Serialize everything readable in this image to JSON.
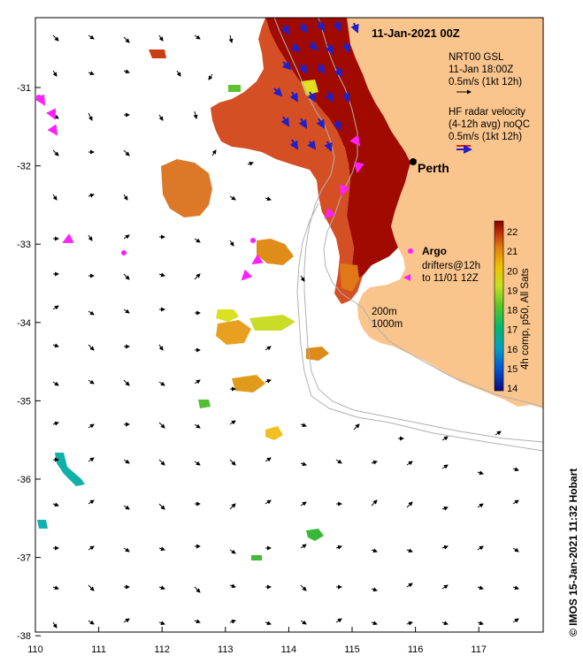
{
  "title": "11-Jan-2021 00Z",
  "city": "Perth",
  "legend": {
    "gsl": [
      "NRT00 GSL",
      "11-Jan 18:00Z",
      "0.5m/s (1kt 12h)"
    ],
    "radar": [
      "HF radar velocity",
      "(4-12h avg) noQC",
      "0.5m/s (1kt 12h)"
    ],
    "argo": "Argo",
    "drifters": [
      "drifters@12h",
      "to 11/01 12Z"
    ],
    "isobaths": [
      "200m",
      "1000m"
    ]
  },
  "colorbar": {
    "label": "4h comp, p50, All Sats",
    "ticks": [
      "14",
      "15",
      "16",
      "17",
      "18",
      "19",
      "20",
      "21",
      "22"
    ],
    "stops": [
      "#0a0a80",
      "#0050d0",
      "#00a0c8",
      "#00b870",
      "#58c828",
      "#c8e020",
      "#f0c000",
      "#e08010",
      "#c03008",
      "#8a0000"
    ]
  },
  "x_ticks": [
    "110",
    "111",
    "112",
    "113",
    "114",
    "115",
    "116",
    "117"
  ],
  "y_ticks": [
    "-31",
    "-32",
    "-33",
    "-34",
    "-35",
    "-36",
    "-37",
    "-38"
  ],
  "credit": "© IMOS 15-Jan-2021 11:32 Hobart",
  "colors": {
    "land": "#fac58d",
    "sst_warm": "#a00a00",
    "radar": "#2020c8",
    "drifter": "#ff20ff"
  }
}
